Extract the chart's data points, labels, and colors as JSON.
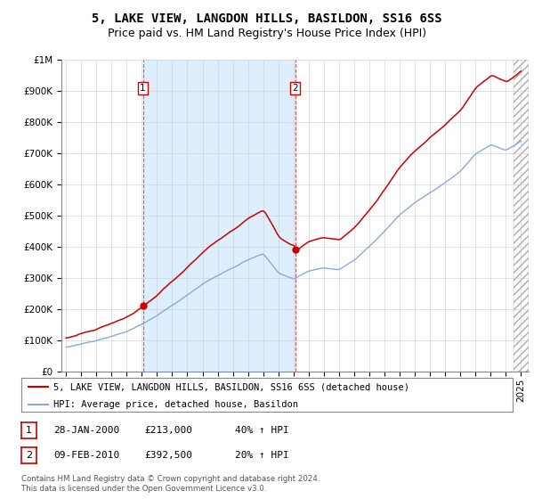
{
  "title": "5, LAKE VIEW, LANGDON HILLS, BASILDON, SS16 6SS",
  "subtitle": "Price paid vs. HM Land Registry's House Price Index (HPI)",
  "ytick_values": [
    0,
    100000,
    200000,
    300000,
    400000,
    500000,
    600000,
    700000,
    800000,
    900000,
    1000000
  ],
  "ylim": [
    0,
    1000000
  ],
  "xlim_start": 1994.7,
  "xlim_end": 2025.5,
  "sale1_year": 2000.07,
  "sale1_price": 213000,
  "sale1_label": "1",
  "sale2_year": 2010.12,
  "sale2_price": 392500,
  "sale2_label": "2",
  "marker_color": "#cc0000",
  "hpi_color": "#88aadd",
  "price_line_color": "#cc0000",
  "vline_color": "#cc3333",
  "grid_color": "#cccccc",
  "shaded_color": "#ddeeff",
  "background_color": "#ffffff",
  "legend_label1": "5, LAKE VIEW, LANGDON HILLS, BASILDON, SS16 6SS (detached house)",
  "legend_label2": "HPI: Average price, detached house, Basildon",
  "table_row1": [
    "1",
    "28-JAN-2000",
    "£213,000",
    "40% ↑ HPI"
  ],
  "table_row2": [
    "2",
    "09-FEB-2010",
    "£392,500",
    "20% ↑ HPI"
  ],
  "footnote": "Contains HM Land Registry data © Crown copyright and database right 2024.\nThis data is licensed under the Open Government Licence v3.0.",
  "title_fontsize": 10,
  "subtitle_fontsize": 9,
  "tick_fontsize": 7.5,
  "legend_fontsize": 7.5
}
